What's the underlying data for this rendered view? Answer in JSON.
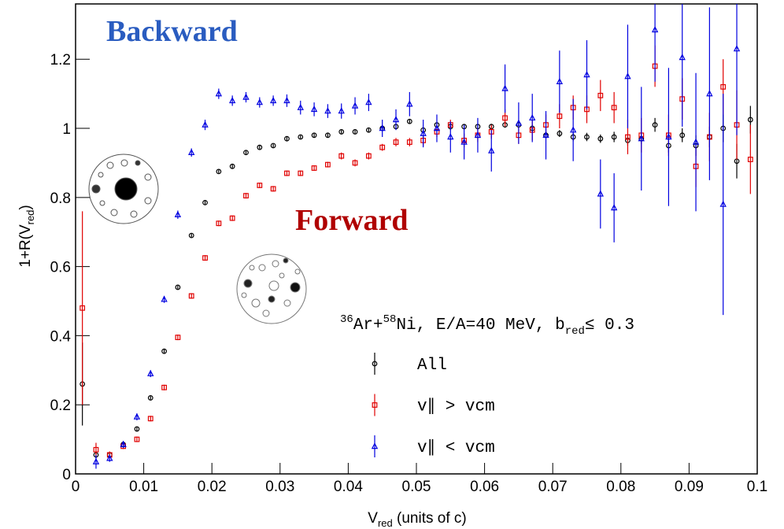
{
  "chart_data": {
    "type": "scatter",
    "annotations": [
      "Backward",
      "Forward"
    ],
    "legend_title": [
      "36",
      "Ar+",
      "58",
      "Ni, E/A=40 MeV, b",
      "red",
      "≤ 0.3"
    ],
    "xlabel": [
      "V",
      "red",
      " (units of c)"
    ],
    "ylabel": [
      "1+R(V",
      "red",
      ")"
    ],
    "xlim": [
      0,
      0.1
    ],
    "ylim": [
      0,
      1.36
    ],
    "xticks": [
      0,
      0.01,
      0.02,
      0.03,
      0.04,
      0.05,
      0.06,
      0.07,
      0.08,
      0.09,
      0.1
    ],
    "yticks": [
      0,
      0.2,
      0.4,
      0.6,
      0.8,
      1,
      1.2
    ],
    "x": [
      0.001,
      0.003,
      0.005,
      0.007,
      0.009,
      0.011,
      0.013,
      0.015,
      0.017,
      0.019,
      0.021,
      0.023,
      0.025,
      0.027,
      0.029,
      0.031,
      0.033,
      0.035,
      0.037,
      0.039,
      0.041,
      0.043,
      0.045,
      0.047,
      0.049,
      0.051,
      0.053,
      0.055,
      0.057,
      0.059,
      0.061,
      0.063,
      0.065,
      0.067,
      0.069,
      0.071,
      0.073,
      0.075,
      0.077,
      0.079,
      0.081,
      0.083,
      0.085,
      0.087,
      0.089,
      0.091,
      0.093,
      0.095,
      0.097,
      0.099
    ],
    "series": [
      {
        "name": "All",
        "color": "#000000",
        "marker": "circle",
        "values": [
          0.26,
          0.055,
          0.055,
          0.085,
          0.13,
          0.22,
          0.355,
          0.54,
          0.69,
          0.785,
          0.875,
          0.89,
          0.93,
          0.945,
          0.95,
          0.97,
          0.975,
          0.98,
          0.98,
          0.99,
          0.99,
          0.995,
          1.0,
          1.005,
          1.02,
          0.995,
          1.01,
          1.005,
          1.005,
          1.005,
          1.005,
          1.01,
          1.01,
          1.0,
          0.98,
          0.985,
          0.975,
          0.975,
          0.97,
          0.975,
          0.965,
          0.97,
          1.01,
          0.95,
          0.98,
          0.95,
          0.975,
          1.0,
          0.905,
          1.025
        ],
        "errors": [
          0.12,
          0.01,
          0.005,
          0.005,
          0.005,
          0.005,
          0.005,
          0.005,
          0.005,
          0.005,
          0.005,
          0.005,
          0.005,
          0.005,
          0.005,
          0.005,
          0.005,
          0.005,
          0.005,
          0.005,
          0.005,
          0.005,
          0.005,
          0.005,
          0.005,
          0.005,
          0.005,
          0.005,
          0.005,
          0.005,
          0.008,
          0.008,
          0.01,
          0.01,
          0.01,
          0.01,
          0.012,
          0.012,
          0.012,
          0.015,
          0.015,
          0.015,
          0.02,
          0.02,
          0.02,
          0.03,
          0.03,
          0.04,
          0.05,
          0.04
        ]
      },
      {
        "name": "v∥ > vcm",
        "color": "#e00000",
        "marker": "square",
        "values": [
          0.48,
          0.07,
          0.055,
          0.08,
          0.1,
          0.16,
          0.25,
          0.395,
          0.515,
          0.625,
          0.725,
          0.74,
          0.805,
          0.835,
          0.825,
          0.87,
          0.87,
          0.885,
          0.895,
          0.92,
          0.9,
          0.92,
          0.945,
          0.96,
          0.96,
          0.965,
          0.99,
          1.01,
          0.965,
          0.98,
          0.99,
          1.03,
          0.98,
          0.995,
          1.01,
          1.035,
          1.06,
          1.055,
          1.095,
          1.06,
          0.975,
          0.98,
          1.18,
          0.98,
          1.085,
          0.89,
          0.975,
          1.12,
          1.01,
          0.91
        ],
        "errors": [
          0.28,
          0.02,
          0.01,
          0.008,
          0.008,
          0.008,
          0.008,
          0.008,
          0.008,
          0.008,
          0.008,
          0.008,
          0.008,
          0.008,
          0.008,
          0.008,
          0.008,
          0.008,
          0.008,
          0.01,
          0.01,
          0.01,
          0.01,
          0.012,
          0.012,
          0.015,
          0.015,
          0.015,
          0.02,
          0.02,
          0.02,
          0.025,
          0.025,
          0.03,
          0.03,
          0.035,
          0.035,
          0.04,
          0.045,
          0.045,
          0.05,
          0.05,
          0.06,
          0.06,
          0.06,
          0.06,
          0.07,
          0.08,
          0.1,
          0.1
        ]
      },
      {
        "name": "v∥ < vcm",
        "color": "#0000e0",
        "marker": "triangle",
        "values": [
          null,
          0.035,
          0.045,
          0.085,
          0.165,
          0.29,
          0.505,
          0.75,
          0.93,
          1.01,
          1.1,
          1.08,
          1.09,
          1.075,
          1.08,
          1.08,
          1.06,
          1.055,
          1.05,
          1.05,
          1.065,
          1.075,
          1.0,
          1.025,
          1.07,
          0.985,
          1.0,
          0.975,
          0.96,
          0.98,
          0.935,
          1.115,
          1.015,
          1.03,
          0.98,
          1.135,
          0.995,
          1.155,
          0.81,
          0.77,
          1.15,
          0.97,
          1.285,
          0.975,
          1.205,
          0.96,
          1.1,
          0.78,
          1.23,
          null
        ],
        "errors": [
          null,
          0.02,
          0.01,
          0.01,
          0.01,
          0.01,
          0.01,
          0.012,
          0.012,
          0.015,
          0.015,
          0.015,
          0.015,
          0.015,
          0.015,
          0.018,
          0.02,
          0.02,
          0.02,
          0.022,
          0.025,
          0.025,
          0.025,
          0.03,
          0.035,
          0.04,
          0.04,
          0.045,
          0.05,
          0.05,
          0.06,
          0.07,
          0.06,
          0.07,
          0.07,
          0.09,
          0.09,
          0.1,
          0.1,
          0.1,
          0.15,
          0.15,
          0.15,
          0.2,
          0.2,
          0.2,
          0.25,
          0.32,
          0.25,
          null
        ]
      }
    ]
  }
}
